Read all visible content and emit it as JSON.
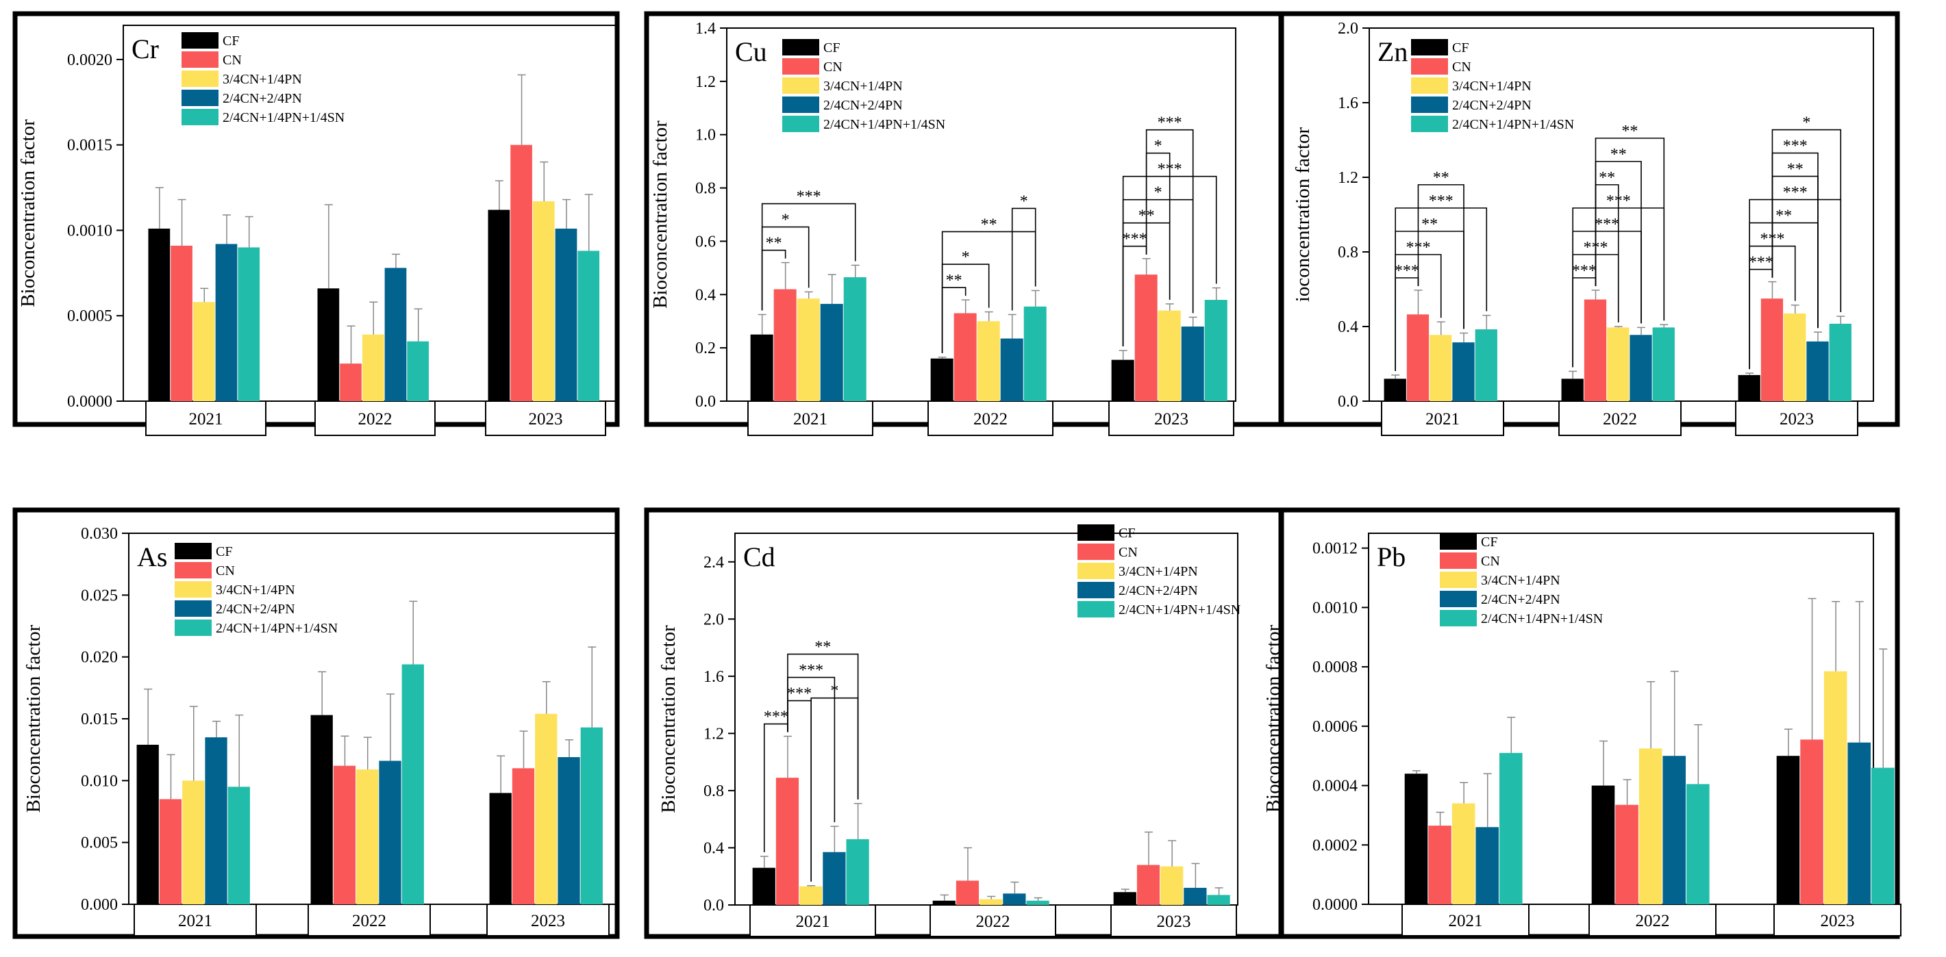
{
  "legend_labels": [
    "CF",
    "CN",
    "3/4CN+1/4PN",
    "2/4CN+2/4PN",
    "2/4CN+1/4PN+1/4SN"
  ],
  "colors": [
    "#000000",
    "#fa5858",
    "#fde15a",
    "#02638f",
    "#22bcaa"
  ],
  "chart_data": [
    {
      "type": "bar",
      "title": "Cr",
      "ylabel": "Bioconcentration factor",
      "ylim": [
        0,
        0.0022
      ],
      "yticks": [
        0,
        0.0005,
        0.001,
        0.0015,
        0.002
      ],
      "ytick_labels": [
        "0.0000",
        "0.0005",
        "0.0010",
        "0.0015",
        "0.0020"
      ],
      "categories": [
        "2021",
        "2022",
        "2023"
      ],
      "series": [
        {
          "name": "CF",
          "values": [
            0.00101,
            0.00066,
            0.00112
          ],
          "errors": [
            0.00024,
            0.00049,
            0.00017
          ]
        },
        {
          "name": "CN",
          "values": [
            0.00091,
            0.00022,
            0.0015
          ],
          "errors": [
            0.00027,
            0.00022,
            0.00041
          ]
        },
        {
          "name": "3/4CN+1/4PN",
          "values": [
            0.00058,
            0.00039,
            0.00117
          ],
          "errors": [
            8e-05,
            0.00019,
            0.00023
          ]
        },
        {
          "name": "2/4CN+2/4PN",
          "values": [
            0.00092,
            0.00078,
            0.00101
          ],
          "errors": [
            0.00017,
            8e-05,
            0.00017
          ]
        },
        {
          "name": "2/4CN+1/4PN+1/4SN",
          "values": [
            0.0009,
            0.00035,
            0.00088
          ],
          "errors": [
            0.00018,
            0.00019,
            0.00033
          ]
        }
      ],
      "significance": []
    },
    {
      "type": "bar",
      "title": "Cu",
      "ylabel": "Bioconcentration factor",
      "ylim": [
        0,
        1.4
      ],
      "yticks": [
        0,
        0.2,
        0.4,
        0.6,
        0.8,
        1.0,
        1.2,
        1.4
      ],
      "ytick_labels": [
        "0.0",
        "0.2",
        "0.4",
        "0.6",
        "0.8",
        "1.0",
        "1.2",
        "1.4"
      ],
      "categories": [
        "2021",
        "2022",
        "2023"
      ],
      "series": [
        {
          "name": "CF",
          "values": [
            0.25,
            0.16,
            0.155
          ],
          "errors": [
            0.075,
            0.005,
            0.035
          ]
        },
        {
          "name": "CN",
          "values": [
            0.42,
            0.33,
            0.475
          ],
          "errors": [
            0.1,
            0.05,
            0.06
          ]
        },
        {
          "name": "3/4CN+1/4PN",
          "values": [
            0.385,
            0.3,
            0.34
          ],
          "errors": [
            0.025,
            0.035,
            0.025
          ]
        },
        {
          "name": "2/4CN+2/4PN",
          "values": [
            0.365,
            0.235,
            0.28
          ],
          "errors": [
            0.11,
            0.09,
            0.035
          ]
        },
        {
          "name": "2/4CN+1/4PN+1/4SN",
          "values": [
            0.465,
            0.355,
            0.38
          ],
          "errors": [
            0.045,
            0.06,
            0.045
          ]
        }
      ],
      "significance": [
        {
          "group": 0,
          "from": 0,
          "to": 1,
          "label": "**"
        },
        {
          "group": 0,
          "from": 0,
          "to": 2,
          "label": "*"
        },
        {
          "group": 0,
          "from": 0,
          "to": 4,
          "label": "***"
        },
        {
          "group": 1,
          "from": 0,
          "to": 1,
          "label": "**"
        },
        {
          "group": 1,
          "from": 0,
          "to": 2,
          "label": "*"
        },
        {
          "group": 1,
          "from": 0,
          "to": 4,
          "label": "**"
        },
        {
          "group": 1,
          "from": 3,
          "to": 4,
          "label": "*"
        },
        {
          "group": 2,
          "from": 0,
          "to": 1,
          "label": "***"
        },
        {
          "group": 2,
          "from": 0,
          "to": 2,
          "label": "**"
        },
        {
          "group": 2,
          "from": 0,
          "to": 3,
          "label": "*"
        },
        {
          "group": 2,
          "from": 0,
          "to": 4,
          "label": "***"
        },
        {
          "group": 2,
          "from": 1,
          "to": 2,
          "label": "*"
        },
        {
          "group": 2,
          "from": 1,
          "to": 3,
          "label": "***"
        }
      ]
    },
    {
      "type": "bar",
      "title": "Zn",
      "ylabel": "ioconcentration factor",
      "ylim": [
        0,
        2.0
      ],
      "yticks": [
        0,
        0.4,
        0.8,
        1.2,
        1.6,
        2.0
      ],
      "ytick_labels": [
        "0.0",
        "0.4",
        "0.8",
        "1.2",
        "1.6",
        "2.0"
      ],
      "categories": [
        "2021",
        "2022",
        "2023"
      ],
      "series": [
        {
          "name": "CF",
          "values": [
            0.12,
            0.12,
            0.14
          ],
          "errors": [
            0.02,
            0.04,
            0.01
          ]
        },
        {
          "name": "CN",
          "values": [
            0.465,
            0.545,
            0.55
          ],
          "errors": [
            0.13,
            0.05,
            0.09
          ]
        },
        {
          "name": "3/4CN+1/4PN",
          "values": [
            0.355,
            0.395,
            0.47
          ],
          "errors": [
            0.07,
            0.005,
            0.045
          ]
        },
        {
          "name": "2/4CN+2/4PN",
          "values": [
            0.315,
            0.355,
            0.32
          ],
          "errors": [
            0.05,
            0.04,
            0.05
          ]
        },
        {
          "name": "2/4CN+1/4PN+1/4SN",
          "values": [
            0.385,
            0.395,
            0.415
          ],
          "errors": [
            0.075,
            0.015,
            0.04
          ]
        }
      ],
      "significance": [
        {
          "group": 0,
          "from": 0,
          "to": 1,
          "label": "***"
        },
        {
          "group": 0,
          "from": 0,
          "to": 2,
          "label": "***"
        },
        {
          "group": 0,
          "from": 0,
          "to": 3,
          "label": "**"
        },
        {
          "group": 0,
          "from": 0,
          "to": 4,
          "label": "***"
        },
        {
          "group": 0,
          "from": 1,
          "to": 3,
          "label": "**"
        },
        {
          "group": 1,
          "from": 0,
          "to": 1,
          "label": "***"
        },
        {
          "group": 1,
          "from": 0,
          "to": 2,
          "label": "***"
        },
        {
          "group": 1,
          "from": 0,
          "to": 3,
          "label": "***"
        },
        {
          "group": 1,
          "from": 0,
          "to": 4,
          "label": "***"
        },
        {
          "group": 1,
          "from": 1,
          "to": 2,
          "label": "**"
        },
        {
          "group": 1,
          "from": 1,
          "to": 3,
          "label": "**"
        },
        {
          "group": 1,
          "from": 1,
          "to": 4,
          "label": "**"
        },
        {
          "group": 2,
          "from": 0,
          "to": 1,
          "label": "***"
        },
        {
          "group": 2,
          "from": 0,
          "to": 2,
          "label": "***"
        },
        {
          "group": 2,
          "from": 0,
          "to": 3,
          "label": "**"
        },
        {
          "group": 2,
          "from": 0,
          "to": 4,
          "label": "***"
        },
        {
          "group": 2,
          "from": 1,
          "to": 3,
          "label": "**"
        },
        {
          "group": 2,
          "from": 1,
          "to": 3,
          "label": "***"
        },
        {
          "group": 2,
          "from": 1,
          "to": 4,
          "label": "*"
        }
      ]
    },
    {
      "type": "bar",
      "title": "As",
      "ylabel": "Bioconcentration factor",
      "ylim": [
        0,
        0.03
      ],
      "yticks": [
        0,
        0.005,
        0.01,
        0.015,
        0.02,
        0.025,
        0.03
      ],
      "ytick_labels": [
        "0.000",
        "0.005",
        "0.010",
        "0.015",
        "0.020",
        "0.025",
        "0.030"
      ],
      "categories": [
        "2021",
        "2022",
        "2023"
      ],
      "series": [
        {
          "name": "CF",
          "values": [
            0.0129,
            0.0153,
            0.009
          ],
          "errors": [
            0.0045,
            0.0035,
            0.003
          ]
        },
        {
          "name": "CN",
          "values": [
            0.0085,
            0.0112,
            0.011
          ],
          "errors": [
            0.0036,
            0.0024,
            0.003
          ]
        },
        {
          "name": "3/4CN+1/4PN",
          "values": [
            0.01,
            0.0109,
            0.0154
          ],
          "errors": [
            0.006,
            0.0026,
            0.0026
          ]
        },
        {
          "name": "2/4CN+2/4PN",
          "values": [
            0.0135,
            0.0116,
            0.0119
          ],
          "errors": [
            0.0013,
            0.0054,
            0.0014
          ]
        },
        {
          "name": "2/4CN+1/4PN+1/4SN",
          "values": [
            0.0095,
            0.0194,
            0.0143
          ],
          "errors": [
            0.0058,
            0.0051,
            0.0065
          ]
        }
      ],
      "significance": []
    },
    {
      "type": "bar",
      "title": "Cd",
      "ylabel": "Bioconcentration factor",
      "ylim": [
        0,
        2.6
      ],
      "yticks": [
        0,
        0.4,
        0.8,
        1.2,
        1.6,
        2.0,
        2.4
      ],
      "ytick_labels": [
        "0.0",
        "0.4",
        "0.8",
        "1.2",
        "1.6",
        "2.0",
        "2.4"
      ],
      "categories": [
        "2021",
        "2022",
        "2023"
      ],
      "series": [
        {
          "name": "CF",
          "values": [
            0.26,
            0.03,
            0.09
          ],
          "errors": [
            0.08,
            0.04,
            0.02
          ]
        },
        {
          "name": "CN",
          "values": [
            0.89,
            0.17,
            0.28
          ],
          "errors": [
            0.29,
            0.23,
            0.23
          ]
        },
        {
          "name": "3/4CN+1/4PN",
          "values": [
            0.13,
            0.04,
            0.27
          ],
          "errors": [
            0.005,
            0.02,
            0.18
          ]
        },
        {
          "name": "2/4CN+2/4PN",
          "values": [
            0.37,
            0.08,
            0.12
          ],
          "errors": [
            0.18,
            0.08,
            0.17
          ]
        },
        {
          "name": "2/4CN+1/4PN+1/4SN",
          "values": [
            0.46,
            0.03,
            0.07
          ],
          "errors": [
            0.25,
            0.02,
            0.05
          ]
        }
      ],
      "significance": [
        {
          "group": 0,
          "from": 0,
          "to": 1,
          "label": "***"
        },
        {
          "group": 0,
          "from": 1,
          "to": 2,
          "label": "***"
        },
        {
          "group": 0,
          "from": 1,
          "to": 3,
          "label": "***"
        },
        {
          "group": 0,
          "from": 1,
          "to": 4,
          "label": "**"
        },
        {
          "group": 0,
          "from": 2,
          "to": 4,
          "label": "*"
        }
      ]
    },
    {
      "type": "bar",
      "title": "Pb",
      "ylabel": "Bioconcentration factor",
      "ylim": [
        0,
        0.00125
      ],
      "yticks": [
        0,
        0.0002,
        0.0004,
        0.0006,
        0.0008,
        0.001,
        0.0012
      ],
      "ytick_labels": [
        "0.0000",
        "0.0002",
        "0.0004",
        "0.0006",
        "0.0008",
        "0.0010",
        "0.0012"
      ],
      "categories": [
        "2021",
        "2022",
        "2023"
      ],
      "series": [
        {
          "name": "CF",
          "values": [
            0.00044,
            0.0004,
            0.0005
          ],
          "errors": [
            1e-05,
            0.00015,
            9e-05
          ]
        },
        {
          "name": "CN",
          "values": [
            0.000265,
            0.000335,
            0.000555
          ],
          "errors": [
            4.5e-05,
            8.5e-05,
            0.000475
          ]
        },
        {
          "name": "3/4CN+1/4PN",
          "values": [
            0.00034,
            0.000525,
            0.000785
          ],
          "errors": [
            7e-05,
            0.000225,
            0.000235
          ]
        },
        {
          "name": "2/4CN+2/4PN",
          "values": [
            0.00026,
            0.0005,
            0.000545
          ],
          "errors": [
            0.00018,
            0.000285,
            0.000475
          ]
        },
        {
          "name": "2/4CN+1/4PN+1/4SN",
          "values": [
            0.00051,
            0.000405,
            0.00046
          ],
          "errors": [
            0.00012,
            0.0002,
            0.0004
          ]
        }
      ],
      "significance": []
    }
  ]
}
